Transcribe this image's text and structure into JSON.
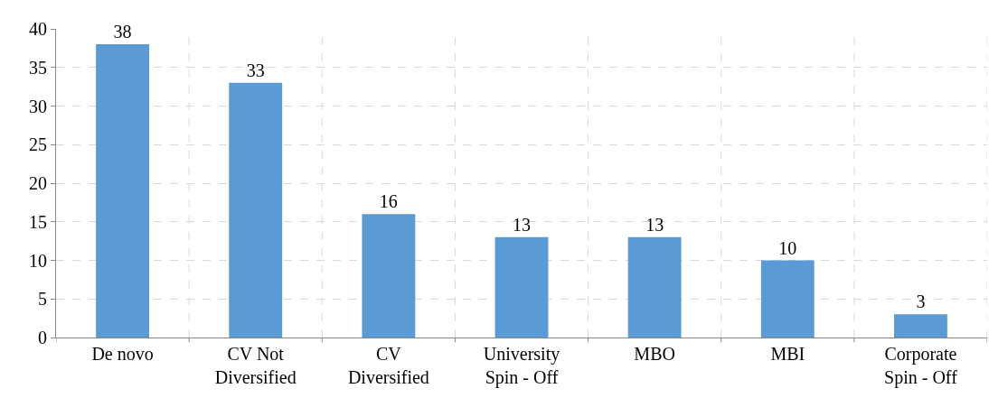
{
  "chart_data": {
    "type": "bar",
    "categories": [
      "De novo",
      "CV Not\nDiversified",
      "CV\nDiversified",
      "University\nSpin - Off",
      "MBO",
      "MBI",
      "Corporate\nSpin - Off"
    ],
    "values": [
      38,
      33,
      16,
      13,
      13,
      10,
      3
    ],
    "color": "#5b9bd5",
    "ylim": [
      0,
      40
    ],
    "yticks": [
      0,
      5,
      10,
      15,
      20,
      25,
      30,
      35,
      40
    ],
    "grid": true,
    "data_labels": true
  }
}
